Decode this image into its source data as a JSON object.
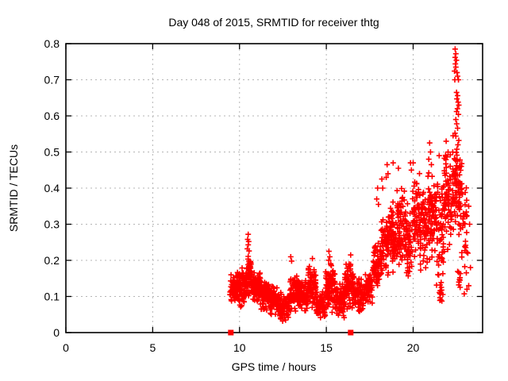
{
  "chart_data": {
    "type": "scatter",
    "title": "Day 048 of 2015, SRMTID for receiver thtg",
    "xlabel": "GPS time / hours",
    "ylabel": "SRMTID / TECUs",
    "xlim": [
      0,
      24
    ],
    "ylim": [
      0,
      0.8
    ],
    "xtick_values": [
      0,
      5,
      10,
      15,
      20
    ],
    "xtick_labels": [
      "0",
      "5",
      "10",
      "15",
      "20"
    ],
    "ytick_values": [
      0,
      0.1,
      0.2,
      0.3,
      0.4,
      0.5,
      0.6,
      0.7,
      0.8
    ],
    "ytick_labels": [
      "0",
      "0.1",
      "0.2",
      "0.3",
      "0.4",
      "0.5",
      "0.6",
      "0.7",
      "0.8"
    ],
    "grid": true,
    "legend_position": "none",
    "marker": "plus-cross",
    "marker_color": "#ff0000",
    "grid_color": "#b5b5b5",
    "axis_color": "#000000",
    "background_color": "#ffffff",
    "axis_event_marker_hours": [
      9.5,
      16.4
    ],
    "data_time_range_hours": [
      9.45,
      23.3
    ],
    "seed": 20150048,
    "density_bands": [
      [
        9.45,
        9.95,
        85,
        0.08,
        0.175
      ],
      [
        9.95,
        10.4,
        75,
        0.07,
        0.185
      ],
      [
        10.4,
        10.7,
        55,
        0.09,
        0.22
      ],
      [
        10.7,
        11.2,
        85,
        0.08,
        0.175
      ],
      [
        11.2,
        11.75,
        80,
        0.055,
        0.15
      ],
      [
        11.75,
        12.25,
        75,
        0.045,
        0.135
      ],
      [
        12.25,
        12.85,
        80,
        0.028,
        0.115
      ],
      [
        12.85,
        13.45,
        85,
        0.05,
        0.165
      ],
      [
        13.45,
        13.95,
        75,
        0.05,
        0.15
      ],
      [
        13.95,
        14.4,
        75,
        0.065,
        0.19
      ],
      [
        14.4,
        14.95,
        75,
        0.03,
        0.12
      ],
      [
        14.95,
        15.5,
        85,
        0.05,
        0.205
      ],
      [
        15.5,
        16.05,
        75,
        0.04,
        0.14
      ],
      [
        16.05,
        16.6,
        80,
        0.06,
        0.205
      ],
      [
        16.6,
        17.15,
        75,
        0.05,
        0.16
      ],
      [
        17.15,
        17.65,
        65,
        0.07,
        0.175
      ],
      [
        17.65,
        18.15,
        65,
        0.1,
        0.26
      ],
      [
        18.15,
        18.6,
        65,
        0.13,
        0.34
      ],
      [
        18.6,
        19.05,
        65,
        0.16,
        0.385
      ],
      [
        19.05,
        19.5,
        65,
        0.18,
        0.41
      ],
      [
        19.5,
        19.95,
        60,
        0.13,
        0.36
      ],
      [
        19.95,
        20.4,
        65,
        0.18,
        0.45
      ],
      [
        20.4,
        20.85,
        60,
        0.15,
        0.41
      ],
      [
        20.85,
        21.3,
        65,
        0.18,
        0.47
      ],
      [
        21.3,
        21.75,
        60,
        0.1,
        0.48
      ],
      [
        21.75,
        22.2,
        65,
        0.21,
        0.52
      ],
      [
        22.2,
        22.55,
        50,
        0.27,
        0.52
      ],
      [
        22.55,
        22.8,
        40,
        0.25,
        0.5
      ],
      [
        22.8,
        23.1,
        28,
        0.1,
        0.44
      ],
      [
        21.45,
        21.75,
        12,
        0.08,
        0.13
      ],
      [
        22.55,
        22.75,
        10,
        0.1,
        0.2
      ]
    ],
    "outlier_points": [
      [
        10.5,
        0.272
      ],
      [
        10.47,
        0.258
      ],
      [
        10.53,
        0.252
      ],
      [
        10.5,
        0.243
      ],
      [
        10.45,
        0.232
      ],
      [
        10.55,
        0.226
      ],
      [
        12.95,
        0.21
      ],
      [
        13.0,
        0.198
      ],
      [
        14.2,
        0.205
      ],
      [
        15.15,
        0.225
      ],
      [
        15.2,
        0.21
      ],
      [
        16.4,
        0.215
      ],
      [
        17.95,
        0.4
      ],
      [
        17.9,
        0.37
      ],
      [
        18.0,
        0.355
      ],
      [
        18.2,
        0.425
      ],
      [
        18.25,
        0.4
      ],
      [
        18.5,
        0.465
      ],
      [
        18.55,
        0.44
      ],
      [
        18.45,
        0.43
      ],
      [
        18.85,
        0.47
      ],
      [
        19.15,
        0.455
      ],
      [
        19.85,
        0.47
      ],
      [
        19.9,
        0.45
      ],
      [
        20.0,
        0.47
      ],
      [
        20.95,
        0.525
      ],
      [
        21.0,
        0.5
      ],
      [
        20.9,
        0.48
      ],
      [
        21.05,
        0.465
      ],
      [
        21.5,
        0.49
      ],
      [
        21.9,
        0.53
      ],
      [
        22.3,
        0.545
      ],
      [
        22.28,
        0.5
      ],
      [
        22.42,
        0.785
      ],
      [
        22.46,
        0.772
      ],
      [
        22.42,
        0.762
      ],
      [
        22.49,
        0.754
      ],
      [
        22.43,
        0.744
      ],
      [
        22.46,
        0.735
      ],
      [
        22.38,
        0.724
      ],
      [
        22.53,
        0.72
      ],
      [
        22.56,
        0.71
      ],
      [
        22.61,
        0.7
      ],
      [
        22.4,
        0.7
      ],
      [
        22.5,
        0.665
      ],
      [
        22.56,
        0.656
      ],
      [
        22.52,
        0.647
      ],
      [
        22.59,
        0.638
      ],
      [
        22.63,
        0.63
      ],
      [
        22.55,
        0.62
      ],
      [
        22.5,
        0.612
      ],
      [
        22.61,
        0.604
      ],
      [
        22.46,
        0.59
      ],
      [
        22.51,
        0.578
      ],
      [
        22.56,
        0.566
      ],
      [
        22.41,
        0.552
      ],
      [
        22.46,
        0.544
      ],
      [
        22.63,
        0.532
      ],
      [
        22.58,
        0.52
      ],
      [
        22.52,
        0.508
      ],
      [
        22.49,
        0.462
      ],
      [
        22.41,
        0.447
      ],
      [
        22.56,
        0.436
      ],
      [
        22.46,
        0.425
      ],
      [
        22.51,
        0.407
      ],
      [
        22.6,
        0.39
      ],
      [
        23.2,
        0.35
      ],
      [
        23.25,
        0.3
      ],
      [
        23.15,
        0.22
      ],
      [
        23.3,
        0.18
      ],
      [
        23.2,
        0.13
      ],
      [
        23.1,
        0.12
      ]
    ]
  }
}
